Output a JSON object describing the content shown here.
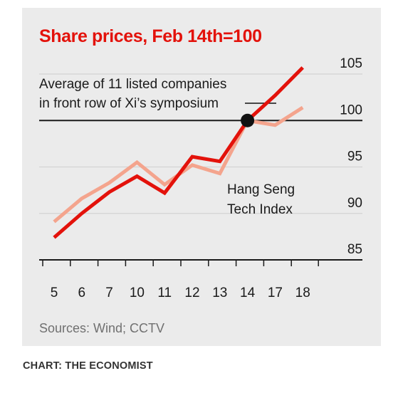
{
  "chart_data": {
    "type": "line",
    "title": "Share prices, Feb 14th=100",
    "x": [
      "5",
      "6",
      "7",
      "10",
      "11",
      "12",
      "13",
      "14",
      "17",
      "18"
    ],
    "ylim": [
      85,
      105
    ],
    "yticks": [
      85,
      90,
      95,
      100,
      105
    ],
    "reference_line": 100,
    "series": [
      {
        "name": "Average of 11 listed companies in front row of Xi’s symposium",
        "label_lines": [
          "Average of 11 listed companies",
          "in front row of Xi’s symposium"
        ],
        "color": "#e3120b",
        "values": [
          87.4,
          90.0,
          92.3,
          94.0,
          92.2,
          96.1,
          95.6,
          100.0,
          102.7,
          105.7
        ]
      },
      {
        "name": "Hang Seng Tech Index",
        "label_lines": [
          "Hang Seng",
          "Tech Index"
        ],
        "color": "#f4a48d",
        "values": [
          89.1,
          91.6,
          93.3,
          95.5,
          93.1,
          95.2,
          94.3,
          100.0,
          99.5,
          101.4
        ]
      }
    ],
    "highlight_point": {
      "x": "14",
      "value": 100
    },
    "source": "Sources: Wind; CCTV",
    "grid": true
  },
  "credit": "CHART: THE ECONOMIST",
  "colors": {
    "panel": "#ebebeb",
    "title": "#e3120b",
    "grid": "#d3d3d3",
    "axis": "#1a1a1a"
  }
}
